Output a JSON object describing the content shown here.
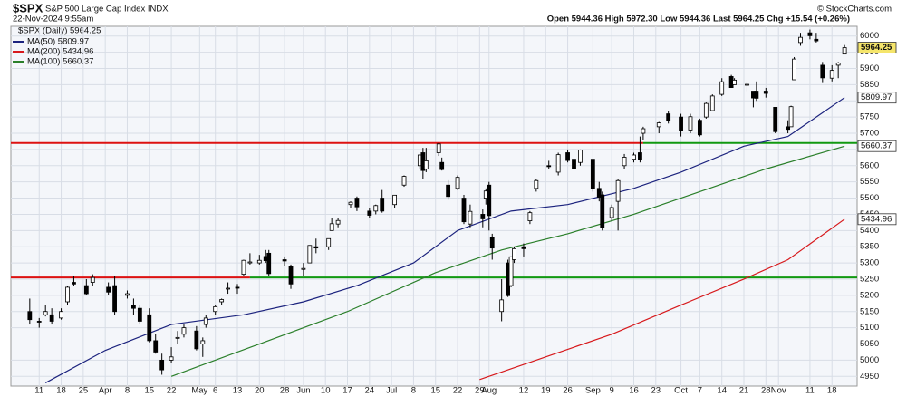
{
  "chart_data": {
    "type": "candlestick",
    "title": "$SPX",
    "subtitle": "S&P 500 Large Cap Index INDX",
    "date": "22-Nov-2024 9:55am",
    "credit": "© StockCharts.com",
    "quote": "Open 5944.36  High 5972.30  Low 5944.36  Last 5964.25  Chg +15.54 (+0.26%)",
    "price_name": "$SPX (Daily) 5964.25",
    "xlim": [
      "2024-03-02",
      "2024-11-26"
    ],
    "ylim": [
      4920,
      6030
    ],
    "yticks": [
      4950,
      5000,
      5050,
      5100,
      5150,
      5200,
      5250,
      5300,
      5350,
      5400,
      5450,
      5500,
      5550,
      5600,
      5650,
      5700,
      5750,
      5800,
      5850,
      5900,
      5950,
      6000
    ],
    "xticks": [
      {
        "value": "2024-03-11",
        "label": "11"
      },
      {
        "value": "2024-03-18",
        "label": "18"
      },
      {
        "value": "2024-03-25",
        "label": "25"
      },
      {
        "value": "2024-04-01",
        "label": "Apr"
      },
      {
        "value": "2024-04-08",
        "label": "8"
      },
      {
        "value": "2024-04-15",
        "label": "15"
      },
      {
        "value": "2024-04-22",
        "label": "22"
      },
      {
        "value": "2024-05-01",
        "label": "May"
      },
      {
        "value": "2024-05-06",
        "label": "6"
      },
      {
        "value": "2024-05-13",
        "label": "13"
      },
      {
        "value": "2024-05-20",
        "label": "20"
      },
      {
        "value": "2024-05-28",
        "label": "28"
      },
      {
        "value": "2024-06-03",
        "label": "Jun"
      },
      {
        "value": "2024-06-10",
        "label": "10"
      },
      {
        "value": "2024-06-17",
        "label": "17"
      },
      {
        "value": "2024-06-24",
        "label": "24"
      },
      {
        "value": "2024-07-01",
        "label": "Jul"
      },
      {
        "value": "2024-07-08",
        "label": "8"
      },
      {
        "value": "2024-07-15",
        "label": "15"
      },
      {
        "value": "2024-07-22",
        "label": "22"
      },
      {
        "value": "2024-07-29",
        "label": "29"
      },
      {
        "value": "2024-08-01",
        "label": "Aug"
      },
      {
        "value": "2024-08-12",
        "label": "12"
      },
      {
        "value": "2024-08-19",
        "label": "19"
      },
      {
        "value": "2024-08-26",
        "label": "26"
      },
      {
        "value": "2024-09-03",
        "label": "Sep"
      },
      {
        "value": "2024-09-09",
        "label": "9"
      },
      {
        "value": "2024-09-16",
        "label": "16"
      },
      {
        "value": "2024-09-23",
        "label": "23"
      },
      {
        "value": "2024-10-01",
        "label": "Oct"
      },
      {
        "value": "2024-10-07",
        "label": "7"
      },
      {
        "value": "2024-10-14",
        "label": "14"
      },
      {
        "value": "2024-10-21",
        "label": "21"
      },
      {
        "value": "2024-10-28",
        "label": "28"
      },
      {
        "value": "2024-11-01",
        "label": "Nov"
      },
      {
        "value": "2024-11-11",
        "label": "11"
      },
      {
        "value": "2024-11-18",
        "label": "18"
      }
    ],
    "grid": true,
    "x": [
      "2024-03-08",
      "2024-03-11",
      "2024-03-13",
      "2024-03-15",
      "2024-03-18",
      "2024-03-20",
      "2024-03-22",
      "2024-03-26",
      "2024-03-28",
      "2024-04-02",
      "2024-04-04",
      "2024-04-08",
      "2024-04-10",
      "2024-04-12",
      "2024-04-15",
      "2024-04-17",
      "2024-04-19",
      "2024-04-22",
      "2024-04-24",
      "2024-04-26",
      "2024-04-30",
      "2024-05-02",
      "2024-05-03",
      "2024-05-06",
      "2024-05-08",
      "2024-05-10",
      "2024-05-13",
      "2024-05-15",
      "2024-05-17",
      "2024-05-20",
      "2024-05-22",
      "2024-05-23",
      "2024-05-28",
      "2024-05-30",
      "2024-06-03",
      "2024-06-05",
      "2024-06-07",
      "2024-06-11",
      "2024-06-12",
      "2024-06-14",
      "2024-06-18",
      "2024-06-20",
      "2024-06-24",
      "2024-06-26",
      "2024-06-28",
      "2024-07-02",
      "2024-07-05",
      "2024-07-10",
      "2024-07-11",
      "2024-07-12",
      "2024-07-16",
      "2024-07-17",
      "2024-07-19",
      "2024-07-22",
      "2024-07-24",
      "2024-07-26",
      "2024-07-30",
      "2024-07-31",
      "2024-08-01",
      "2024-08-02",
      "2024-08-05",
      "2024-08-07",
      "2024-08-08",
      "2024-08-09",
      "2024-08-12",
      "2024-08-14",
      "2024-08-16",
      "2024-08-20",
      "2024-08-23",
      "2024-08-26",
      "2024-08-28",
      "2024-08-30",
      "2024-09-03",
      "2024-09-05",
      "2024-09-06",
      "2024-09-09",
      "2024-09-11",
      "2024-09-13",
      "2024-09-16",
      "2024-09-18",
      "2024-09-19",
      "2024-09-24",
      "2024-09-27",
      "2024-10-01",
      "2024-10-04",
      "2024-10-07",
      "2024-10-09",
      "2024-10-11",
      "2024-10-14",
      "2024-10-17",
      "2024-10-18",
      "2024-10-22",
      "2024-10-24",
      "2024-10-25",
      "2024-10-28",
      "2024-10-31",
      "2024-11-04",
      "2024-11-05",
      "2024-11-06",
      "2024-11-08",
      "2024-11-11",
      "2024-11-13",
      "2024-11-15",
      "2024-11-18",
      "2024-11-20",
      "2024-11-22"
    ],
    "open": [
      5150,
      5120,
      5140,
      5140,
      5130,
      5180,
      5240,
      5230,
      5240,
      5225,
      5230,
      5200,
      5170,
      5160,
      5140,
      5060,
      5000,
      5000,
      5070,
      5080,
      5090,
      5050,
      5110,
      5150,
      5180,
      5220,
      5225,
      5265,
      5300,
      5300,
      5320,
      5330,
      5310,
      5290,
      5280,
      5300,
      5350,
      5350,
      5400,
      5420,
      5480,
      5500,
      5460,
      5460,
      5500,
      5480,
      5540,
      5600,
      5640,
      5590,
      5640,
      5610,
      5540,
      5530,
      5500,
      5420,
      5450,
      5500,
      5540,
      5380,
      5150,
      5300,
      5230,
      5310,
      5350,
      5430,
      5530,
      5600,
      5580,
      5640,
      5620,
      5610,
      5620,
      5530,
      5510,
      5440,
      5490,
      5600,
      5620,
      5640,
      5700,
      5720,
      5760,
      5750,
      5710,
      5740,
      5750,
      5770,
      5820,
      5875,
      5850,
      5850,
      5830,
      5830,
      5830,
      5780,
      5720,
      5720,
      5865,
      5980,
      6010,
      5990,
      5910,
      5870,
      5910,
      5944.36
    ],
    "high": [
      5190,
      5130,
      5170,
      5160,
      5160,
      5230,
      5260,
      5250,
      5265,
      5240,
      5260,
      5215,
      5190,
      5170,
      5160,
      5080,
      5020,
      5040,
      5090,
      5110,
      5105,
      5070,
      5140,
      5170,
      5190,
      5240,
      5235,
      5310,
      5330,
      5325,
      5340,
      5340,
      5320,
      5295,
      5300,
      5355,
      5375,
      5375,
      5440,
      5440,
      5490,
      5505,
      5470,
      5480,
      5525,
      5510,
      5570,
      5635,
      5655,
      5655,
      5670,
      5625,
      5555,
      5570,
      5510,
      5480,
      5465,
      5530,
      5550,
      5390,
      5250,
      5310,
      5320,
      5350,
      5360,
      5460,
      5560,
      5615,
      5640,
      5650,
      5625,
      5650,
      5620,
      5550,
      5520,
      5480,
      5560,
      5636,
      5640,
      5690,
      5720,
      5735,
      5770,
      5760,
      5760,
      5745,
      5795,
      5820,
      5870,
      5880,
      5870,
      5860,
      5830,
      5860,
      5840,
      5780,
      5740,
      5785,
      5935,
      6010,
      6020,
      6010,
      5920,
      5910,
      5920,
      5972.3
    ],
    "low": [
      5110,
      5100,
      5135,
      5110,
      5125,
      5170,
      5230,
      5200,
      5230,
      5200,
      5140,
      5190,
      5140,
      5110,
      5055,
      5020,
      4955,
      4990,
      5050,
      5070,
      5030,
      5010,
      5100,
      5140,
      5170,
      5205,
      5205,
      5260,
      5295,
      5295,
      5300,
      5260,
      5290,
      5220,
      5260,
      5300,
      5330,
      5340,
      5400,
      5410,
      5470,
      5460,
      5440,
      5450,
      5455,
      5470,
      5535,
      5590,
      5560,
      5580,
      5630,
      5585,
      5495,
      5525,
      5420,
      5410,
      5410,
      5480,
      5400,
      5310,
      5120,
      5195,
      5225,
      5300,
      5320,
      5420,
      5520,
      5590,
      5570,
      5610,
      5560,
      5600,
      5520,
      5490,
      5400,
      5430,
      5400,
      5590,
      5610,
      5610,
      5680,
      5700,
      5730,
      5690,
      5700,
      5690,
      5745,
      5770,
      5815,
      5840,
      5850,
      5830,
      5780,
      5800,
      5810,
      5700,
      5700,
      5720,
      5865,
      5970,
      5990,
      5980,
      5855,
      5860,
      5870,
      5944.36
    ],
    "close": [
      5125,
      5118,
      5150,
      5120,
      5150,
      5225,
      5235,
      5205,
      5255,
      5210,
      5150,
      5205,
      5160,
      5120,
      5060,
      5025,
      4970,
      5010,
      5070,
      5100,
      5035,
      5060,
      5130,
      5165,
      5187,
      5222,
      5222,
      5308,
      5303,
      5308,
      5307,
      5267,
      5306,
      5235,
      5283,
      5354,
      5346,
      5375,
      5421,
      5431,
      5487,
      5473,
      5447,
      5477,
      5460,
      5509,
      5567,
      5633,
      5585,
      5615,
      5667,
      5588,
      5505,
      5564,
      5427,
      5459,
      5436,
      5522,
      5446,
      5346,
      5186,
      5199,
      5319,
      5344,
      5344,
      5455,
      5554,
      5597,
      5634,
      5616,
      5592,
      5648,
      5528,
      5503,
      5408,
      5471,
      5554,
      5626,
      5633,
      5618,
      5714,
      5732,
      5738,
      5709,
      5751,
      5695,
      5792,
      5815,
      5859,
      5841,
      5864,
      5851,
      5809,
      5808,
      5823,
      5705,
      5712,
      5782,
      5929,
      5996,
      6001,
      5985,
      5871,
      5894,
      5917,
      5964.25
    ],
    "series": [
      {
        "name": "MA(50) 5809.97",
        "color": "#1c237e",
        "x": [
          "2024-03-13",
          "2024-04-01",
          "2024-04-22",
          "2024-05-15",
          "2024-06-03",
          "2024-06-20",
          "2024-07-08",
          "2024-07-22",
          "2024-08-08",
          "2024-08-26",
          "2024-09-16",
          "2024-10-01",
          "2024-10-21",
          "2024-11-04",
          "2024-11-22"
        ],
        "values": [
          4930,
          5030,
          5110,
          5140,
          5180,
          5230,
          5300,
          5400,
          5460,
          5480,
          5530,
          5580,
          5660,
          5690,
          5810
        ]
      },
      {
        "name": "MA(200) 5434.96",
        "color": "#d7191c",
        "x": [
          "2024-07-29",
          "2024-08-19",
          "2024-09-09",
          "2024-10-01",
          "2024-10-21",
          "2024-11-04",
          "2024-11-22"
        ],
        "values": [
          4940,
          5010,
          5080,
          5170,
          5250,
          5310,
          5435
        ]
      },
      {
        "name": "MA(100) 5660.37",
        "color": "#2a7f2a",
        "x": [
          "2024-04-22",
          "2024-05-20",
          "2024-06-17",
          "2024-07-15",
          "2024-08-05",
          "2024-08-26",
          "2024-09-16",
          "2024-10-07",
          "2024-10-28",
          "2024-11-22"
        ],
        "values": [
          4950,
          5050,
          5150,
          5270,
          5340,
          5390,
          5450,
          5520,
          5590,
          5660
        ]
      }
    ],
    "tags": [
      {
        "value": 5964.25,
        "color": "#f5e56b"
      },
      {
        "value": 5809.97,
        "color": "#ffffff"
      },
      {
        "value": 5660.37,
        "color": "#ffffff"
      },
      {
        "value": 5434.96,
        "color": "#ffffff"
      }
    ],
    "hlines": [
      {
        "value": 5670,
        "color": "#dd1111",
        "from": "2024-03-02",
        "to": "2024-09-19"
      },
      {
        "value": 5670,
        "color": "#119911",
        "from": "2024-09-19",
        "to": "2024-11-26"
      },
      {
        "value": 5255,
        "color": "#dd1111",
        "from": "2024-03-02",
        "to": "2024-05-17"
      },
      {
        "value": 5255,
        "color": "#119911",
        "from": "2024-05-17",
        "to": "2024-11-26"
      }
    ]
  }
}
